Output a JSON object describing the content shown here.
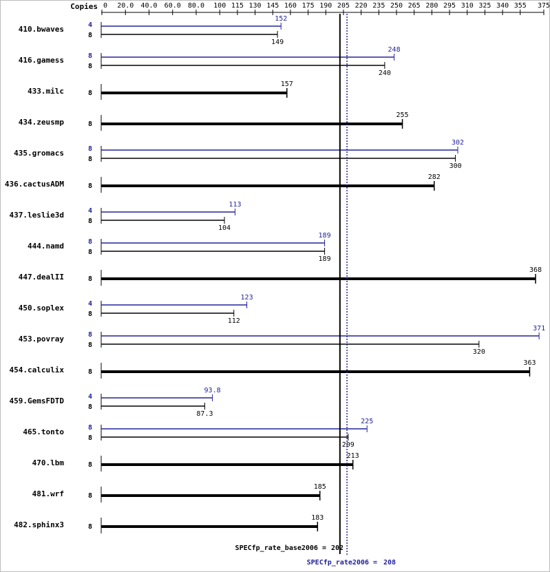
{
  "chart_data": {
    "type": "bar",
    "orientation": "horizontal",
    "copies_header": "Copies",
    "xlim": [
      0,
      375
    ],
    "xticks": [
      0,
      {
        "value": 20,
        "label": "20.0"
      },
      {
        "value": 40,
        "label": "40.0"
      },
      {
        "value": 60,
        "label": "60.0"
      },
      {
        "value": 80,
        "label": "80.0"
      },
      100,
      115,
      130,
      145,
      160,
      175,
      190,
      205,
      220,
      235,
      250,
      265,
      280,
      295,
      310,
      325,
      340,
      355,
      375
    ],
    "categories": [
      "410.bwaves",
      "416.gamess",
      "433.milc",
      "434.zeusmp",
      "435.gromacs",
      "436.cactusADM",
      "437.leslie3d",
      "444.namd",
      "447.dealII",
      "450.soplex",
      "453.povray",
      "454.calculix",
      "459.GemsFDTD",
      "465.tonto",
      "470.lbm",
      "481.wrf",
      "482.sphinx3"
    ],
    "series": [
      {
        "color": "#22229a",
        "copies": [
          4,
          8,
          null,
          null,
          8,
          null,
          4,
          8,
          null,
          4,
          8,
          null,
          4,
          8,
          null,
          null,
          null
        ],
        "values": [
          152,
          248,
          null,
          null,
          302,
          null,
          113,
          189,
          null,
          123,
          371,
          null,
          93.8,
          225,
          null,
          null,
          null
        ]
      },
      {
        "color": "#000000",
        "copies": [
          8,
          8,
          8,
          8,
          8,
          8,
          8,
          8,
          8,
          8,
          8,
          8,
          8,
          8,
          8,
          8,
          8
        ],
        "values": [
          149,
          240,
          157,
          255,
          300,
          282,
          104,
          189,
          368,
          112,
          320,
          363,
          87.3,
          209,
          213,
          185,
          183
        ]
      }
    ],
    "reference_lines": [
      {
        "label": "SPECfp_rate_base2006 =",
        "value": 202,
        "color": "#000000"
      },
      {
        "label": "SPECfp_rate2006 =",
        "value": 208,
        "color": "#22229a"
      }
    ]
  }
}
